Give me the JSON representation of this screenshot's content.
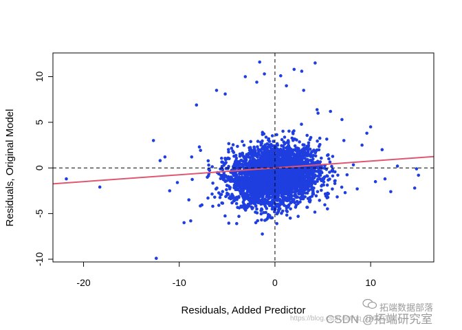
{
  "chart_data": {
    "type": "scatter",
    "title": "",
    "xlabel": "Residuals, Added Predictor",
    "ylabel": "Residuals, Original Model",
    "xlim": [
      -23.2,
      16.6
    ],
    "ylim": [
      -10.3,
      12.6
    ],
    "xticks": [
      -20,
      -10,
      0,
      10
    ],
    "xtick_labels": [
      "-20",
      "-10",
      "0",
      "10"
    ],
    "yticks": [
      -10,
      -5,
      0,
      5,
      10
    ],
    "ytick_labels": [
      "-10",
      "-5",
      "0",
      "5",
      "10"
    ],
    "reference_lines": {
      "horizontal_y": 0,
      "vertical_x": 0,
      "style": "dashed"
    },
    "fit_line": {
      "slope": 0.075,
      "intercept": 0.0,
      "color": "#e0566e"
    },
    "point_color": "#1f3ee0",
    "points": [
      [
        -21.8,
        -1.2
      ],
      [
        -18.3,
        -2.1
      ],
      [
        -12.4,
        -9.9
      ],
      [
        -12.7,
        3.0
      ],
      [
        -12.0,
        0.8
      ],
      [
        -11.5,
        1.2
      ],
      [
        -11.0,
        -2.5
      ],
      [
        -10.2,
        -1.6
      ],
      [
        -9.5,
        -6.0
      ],
      [
        -8.8,
        -5.8
      ],
      [
        -8.2,
        6.9
      ],
      [
        -7.0,
        -3.3
      ],
      [
        -6.1,
        8.5
      ],
      [
        -5.2,
        8.1
      ],
      [
        -4.0,
        -6.1
      ],
      [
        -2.0,
        -6.0
      ],
      [
        -0.7,
        -5.1
      ],
      [
        0.2,
        -6.1
      ],
      [
        0.3,
        -4.9
      ],
      [
        1.6,
        -5.5
      ],
      [
        -3.1,
        10.0
      ],
      [
        -1.9,
        9.4
      ],
      [
        -1.1,
        10.3
      ],
      [
        -1.6,
        11.6
      ],
      [
        0.6,
        10.1
      ],
      [
        2.0,
        10.8
      ],
      [
        2.8,
        10.6
      ],
      [
        1.2,
        9.0
      ],
      [
        4.2,
        11.5
      ],
      [
        3.0,
        8.5
      ],
      [
        4.5,
        6.0
      ],
      [
        5.8,
        6.2
      ],
      [
        7.0,
        5.3
      ],
      [
        9.6,
        3.8
      ],
      [
        10.0,
        4.5
      ],
      [
        11.2,
        2.0
      ],
      [
        11.5,
        -1.2
      ],
      [
        12.1,
        -2.6
      ],
      [
        12.8,
        0.2
      ],
      [
        14.8,
        -0.1
      ],
      [
        15.0,
        -0.8
      ],
      [
        14.6,
        -2.2
      ],
      [
        10.5,
        -1.5
      ],
      [
        8.6,
        -2.3
      ],
      [
        9.1,
        2.5
      ],
      [
        7.2,
        3.0
      ],
      [
        -8.7,
        1.2
      ],
      [
        -7.9,
        2.3
      ],
      [
        -9.0,
        -3.5
      ],
      [
        -6.5,
        -4.2
      ]
    ],
    "cloud": {
      "count": 3500,
      "center": [
        0.0,
        -0.8
      ],
      "spread_x": 2.3,
      "spread_y": 1.3,
      "core": {
        "count": 1100,
        "spread_x": 1.1,
        "spread_y": 0.75
      }
    }
  },
  "watermarks": {
    "wechat": "拓端数据部落",
    "url": "https://blog.csdn.net/qq_19600291",
    "csdn": "CSDN @拓端研究室"
  }
}
